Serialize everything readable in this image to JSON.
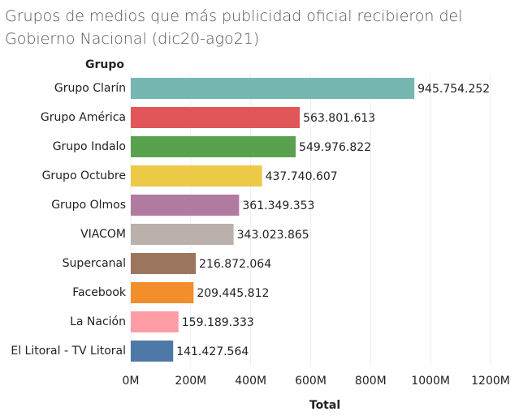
{
  "chart_data": {
    "type": "bar",
    "orientation": "horizontal",
    "title": "Grupos de medios que más publicidad oficial recibieron del Gobierno Nacional (dic20-ago21)",
    "y_label": "Grupo",
    "x_label": "Total",
    "categories": [
      "Grupo Clarín",
      "Grupo América",
      "Grupo Indalo",
      "Grupo Octubre",
      "Grupo Olmos",
      "VIACOM",
      "Supercanal",
      "Facebook",
      "La Nación",
      "El Litoral - TV Litoral"
    ],
    "values": [
      945754252,
      563801613,
      549976822,
      437740607,
      361349353,
      343023865,
      216872064,
      209445812,
      159189333,
      141427564
    ],
    "value_labels": [
      "945.754.252",
      "563.801.613",
      "549.976.822",
      "437.740.607",
      "361.349.353",
      "343.023.865",
      "216.872.064",
      "209.445.812",
      "159.189.333",
      "141.427.564"
    ],
    "colors": [
      "#76b7b2",
      "#e15759",
      "#59a14f",
      "#edc948",
      "#b07aa1",
      "#bab0ac",
      "#9c755f",
      "#f28e2b",
      "#ff9da7",
      "#4e79a7"
    ],
    "xlim": [
      0,
      1200000000
    ],
    "xticks": [
      {
        "value": 0,
        "label": "0M"
      },
      {
        "value": 200000000,
        "label": "200M"
      },
      {
        "value": 400000000,
        "label": "400M"
      },
      {
        "value": 600000000,
        "label": "600M"
      },
      {
        "value": 800000000,
        "label": "800M"
      },
      {
        "value": 1000000000,
        "label": "1000M"
      },
      {
        "value": 1200000000,
        "label": "1200M"
      }
    ],
    "grid": true
  }
}
